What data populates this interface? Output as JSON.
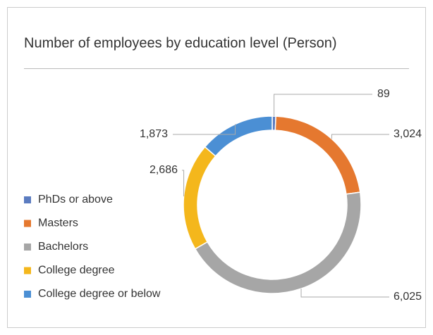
{
  "chart_data": {
    "type": "pie",
    "donut": true,
    "title": "Number of employees by education level (Person)",
    "categories": [
      "PhDs or above",
      "Masters",
      "Bachelors",
      "College degree",
      "College degree or below"
    ],
    "values": [
      89,
      3024,
      6025,
      2686,
      1873
    ],
    "value_labels": [
      "89",
      "3,024",
      "6,025",
      "2,686",
      "1,873"
    ],
    "colors": [
      "#5b7cc0",
      "#e5782f",
      "#a6a6a6",
      "#f4b71c",
      "#4b8fd4"
    ],
    "legend": "left"
  }
}
